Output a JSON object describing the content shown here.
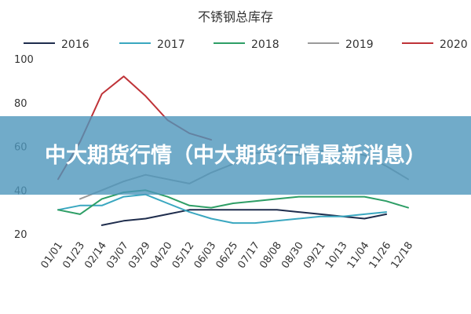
{
  "overlay": {
    "headline": "中大期货行情（中大期货行情最新消息）"
  },
  "chart_data": {
    "type": "line",
    "title": "不锈钢总库存",
    "xlabel": "",
    "ylabel": "",
    "ylim": [
      20,
      100
    ],
    "yticks": [
      20,
      40,
      60,
      80,
      100
    ],
    "grid": false,
    "legend_position": "top",
    "categories": [
      "01/01",
      "01/23",
      "02/14",
      "03/07",
      "03/29",
      "04/20",
      "05/12",
      "06/03",
      "06/25",
      "07/17",
      "08/08",
      "08/30",
      "09/21",
      "10/13",
      "11/04",
      "11/26",
      "12/18"
    ],
    "series": [
      {
        "name": "2016",
        "color": "#1f2d4d",
        "values": [
          null,
          null,
          24,
          26,
          27,
          29,
          31,
          31,
          31,
          31,
          31,
          30,
          29,
          28,
          27,
          29,
          null
        ]
      },
      {
        "name": "2017",
        "color": "#3aa7c0",
        "values": [
          31,
          33,
          33,
          37,
          38,
          34,
          30,
          27,
          25,
          25,
          26,
          27,
          28,
          28,
          29,
          30,
          null
        ]
      },
      {
        "name": "2018",
        "color": "#2e9e66",
        "values": [
          31,
          29,
          36,
          39,
          40,
          37,
          33,
          32,
          34,
          35,
          36,
          37,
          37,
          37,
          37,
          35,
          32
        ]
      },
      {
        "name": "2019",
        "color": "#9a9a9a",
        "values": [
          null,
          36,
          40,
          44,
          47,
          45,
          43,
          48,
          52,
          57,
          57,
          56,
          58,
          58,
          56,
          51,
          45
        ]
      },
      {
        "name": "2020",
        "color": "#bf3338",
        "values": [
          45,
          62,
          84,
          92,
          83,
          72,
          66,
          63,
          null,
          null,
          null,
          null,
          null,
          null,
          null,
          null,
          null
        ]
      }
    ]
  }
}
